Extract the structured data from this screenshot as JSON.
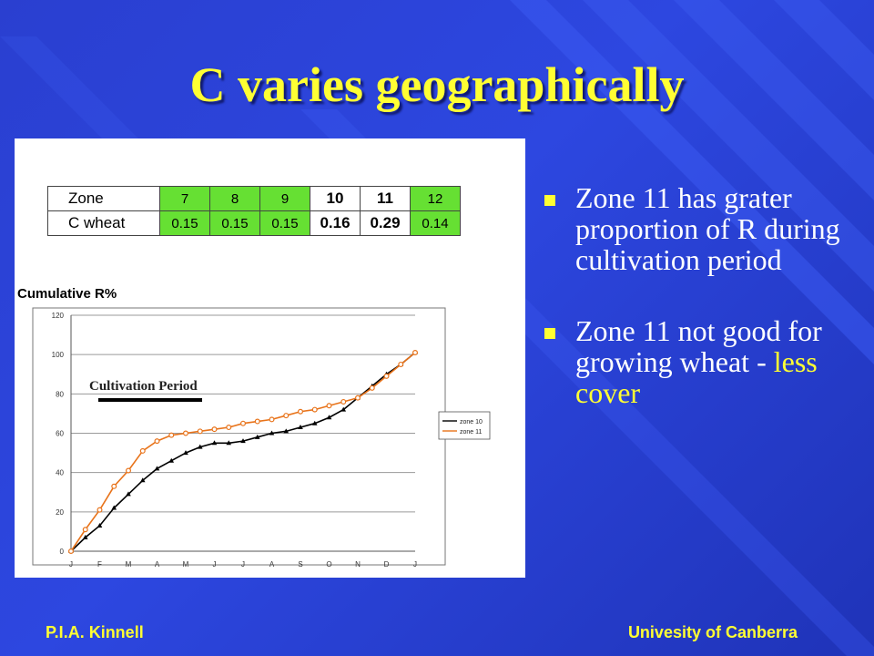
{
  "slide": {
    "title": "C varies geographically",
    "bullets": [
      {
        "text": "Zone 11 has grater proportion of  R during cultivation period"
      },
      {
        "pre": "Zone 11 not good for growing wheat - ",
        "highlight": "less cover"
      }
    ],
    "footer_left": "P.I.A. Kinnell",
    "footer_right": "Univesity of Canberra"
  },
  "zone_table": {
    "row_label_1": "Zone",
    "row_label_2": "C wheat",
    "zones": [
      "7",
      "8",
      "9",
      "10",
      "11",
      "12"
    ],
    "c_values": [
      "0.15",
      "0.15",
      "0.15",
      "0.16",
      "0.29",
      "0.14"
    ]
  },
  "chart_data": {
    "type": "line",
    "ylabel": "Cumulative R%",
    "annotation": "Cultivation Period",
    "categories": [
      "J",
      "F",
      "M",
      "A",
      "M",
      "J",
      "J",
      "A",
      "S",
      "O",
      "N",
      "D",
      "J"
    ],
    "ylim": [
      0,
      120
    ],
    "yticks": [
      "0",
      "20",
      "40",
      "60",
      "80",
      "100",
      "120"
    ],
    "grid": true,
    "legend_position": "right",
    "series": [
      {
        "name": "zone 10",
        "color": "#000000",
        "marker": "triangle",
        "x": [
          0,
          0.5,
          1,
          1.5,
          2,
          2.5,
          3,
          3.5,
          4,
          4.5,
          5,
          5.5,
          6,
          6.5,
          7,
          7.5,
          8,
          8.5,
          9,
          9.5,
          10,
          10.5,
          11,
          11.5,
          12
        ],
        "y": [
          0,
          7,
          13,
          22,
          29,
          36,
          42,
          46,
          50,
          53,
          55,
          55,
          56,
          58,
          60,
          61,
          63,
          65,
          68,
          72,
          78,
          84,
          90,
          95,
          101
        ]
      },
      {
        "name": "zone 11",
        "color": "#e8731a",
        "marker": "circle",
        "x": [
          0,
          0.5,
          1,
          1.5,
          2,
          2.5,
          3,
          3.5,
          4,
          4.5,
          5,
          5.5,
          6,
          6.5,
          7,
          7.5,
          8,
          8.5,
          9,
          9.5,
          10,
          10.5,
          11,
          11.5,
          12
        ],
        "y": [
          0,
          11,
          21,
          33,
          41,
          51,
          56,
          59,
          60,
          61,
          62,
          63,
          65,
          66,
          67,
          69,
          71,
          72,
          74,
          76,
          78,
          83,
          89,
          95,
          101
        ]
      }
    ]
  },
  "colors": {
    "accent_yellow": "#ffff33",
    "green_cell": "#66e033",
    "background_blue": "#2a3fd0"
  }
}
